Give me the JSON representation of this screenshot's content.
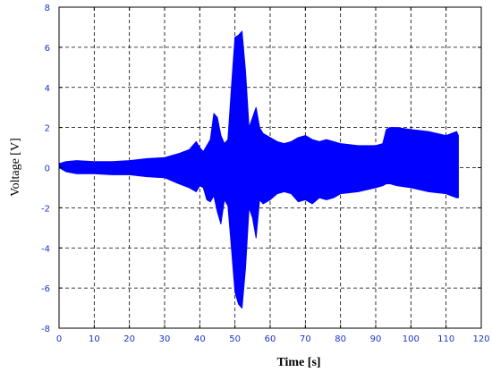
{
  "chart_data": {
    "type": "line",
    "title": "",
    "xlabel": "Time [s]",
    "ylabel": "Voltage [V]",
    "xlim": [
      0,
      120
    ],
    "ylim": [
      -8,
      8
    ],
    "x_ticks": [
      0,
      10,
      20,
      30,
      40,
      50,
      60,
      70,
      80,
      90,
      100,
      110,
      120
    ],
    "y_ticks": [
      -8,
      -6,
      -4,
      -2,
      0,
      2,
      4,
      6,
      8
    ],
    "grid": true,
    "grid_style": "dashed",
    "legend": "none",
    "series": [
      {
        "color": "#0000ff",
        "style": "dense oscillating signal (envelope shown)",
        "envelope": {
          "x": [
            0,
            2,
            5,
            10,
            15,
            20,
            25,
            30,
            34,
            37,
            39,
            40,
            41,
            42,
            43,
            44,
            45,
            46,
            47,
            48,
            49,
            50,
            51,
            52,
            53,
            54,
            55,
            56,
            57,
            58,
            60,
            62,
            64,
            66,
            68,
            70,
            72,
            74,
            76,
            78,
            80,
            85,
            90,
            92,
            93,
            94,
            96,
            100,
            105,
            110,
            113,
            113.5
          ],
          "upper": [
            0.2,
            0.3,
            0.35,
            0.3,
            0.3,
            0.35,
            0.45,
            0.5,
            0.7,
            0.9,
            1.3,
            1.0,
            0.8,
            1.1,
            1.4,
            2.7,
            2.5,
            1.6,
            1.2,
            1.4,
            4.0,
            6.5,
            6.6,
            6.8,
            4.8,
            2.0,
            2.5,
            3.0,
            2.0,
            1.7,
            1.5,
            1.3,
            1.2,
            1.3,
            1.5,
            1.6,
            1.4,
            1.3,
            1.4,
            1.3,
            1.2,
            1.1,
            1.1,
            1.2,
            1.9,
            2.0,
            2.0,
            1.9,
            1.8,
            1.6,
            1.8,
            1.6
          ],
          "lower": [
            0.0,
            -0.2,
            -0.3,
            -0.3,
            -0.35,
            -0.35,
            -0.45,
            -0.5,
            -0.8,
            -1.0,
            -1.2,
            -0.9,
            -1.0,
            -1.6,
            -1.7,
            -1.4,
            -2.2,
            -2.8,
            -1.6,
            -1.9,
            -4.0,
            -6.2,
            -6.8,
            -7.0,
            -5.0,
            -2.0,
            -2.5,
            -3.5,
            -1.6,
            -1.8,
            -1.6,
            -1.3,
            -1.2,
            -1.3,
            -1.7,
            -1.6,
            -1.8,
            -1.5,
            -1.6,
            -1.5,
            -1.3,
            -1.2,
            -1.0,
            -0.9,
            -0.8,
            -0.8,
            -0.9,
            -1.0,
            -1.2,
            -1.3,
            -1.5,
            -1.5
          ]
        }
      }
    ]
  }
}
